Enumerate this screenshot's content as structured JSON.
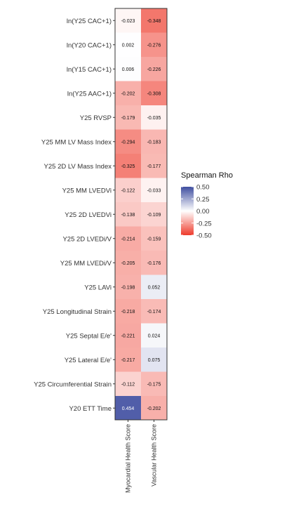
{
  "chart_data": {
    "type": "heatmap",
    "x_categories": [
      "Myocardial Health Score",
      "Vascular Health Score"
    ],
    "y_categories": [
      "ln(Y25 CAC+1)",
      "ln(Y20 CAC+1)",
      "ln(Y15 CAC+1)",
      "ln(Y25 AAC+1)",
      "Y25 RVSP",
      "Y25 MM LV Mass Index",
      "Y25 2D LV Mass Index",
      "Y25 MM LVEDVi",
      "Y25 2D LVEDVi",
      "Y25 2D LVEDi/V",
      "Y25 MM LVEDi/V",
      "Y25 LAVi",
      "Y25 Longitudinal Strain",
      "Y25 Septal E/e'",
      "Y25 Lateral E/e'",
      "Y25 Circumferential Strain",
      "Y20 ETT Time"
    ],
    "values": [
      [
        -0.023,
        -0.348
      ],
      [
        0.002,
        -0.276
      ],
      [
        0.006,
        -0.226
      ],
      [
        -0.202,
        -0.308
      ],
      [
        -0.179,
        -0.035
      ],
      [
        -0.294,
        -0.183
      ],
      [
        -0.325,
        -0.177
      ],
      [
        -0.122,
        -0.033
      ],
      [
        -0.138,
        -0.109
      ],
      [
        -0.214,
        -0.159
      ],
      [
        -0.205,
        -0.176
      ],
      [
        -0.198,
        0.052
      ],
      [
        -0.218,
        -0.174
      ],
      [
        -0.221,
        0.024
      ],
      [
        -0.217,
        0.075
      ],
      [
        -0.112,
        -0.175
      ],
      [
        0.454,
        -0.202
      ]
    ],
    "cell_labels": [
      [
        "-0.023",
        "-0.348"
      ],
      [
        "0.002",
        "-0.276"
      ],
      [
        "0.006",
        "-0.226"
      ],
      [
        "-0.202",
        "-0.308"
      ],
      [
        "-0.179",
        "-0.035"
      ],
      [
        "-0.294",
        "-0.183"
      ],
      [
        "-0.325",
        "-0.177"
      ],
      [
        "-0.122",
        "-0.033"
      ],
      [
        "-0.138",
        "-0.109"
      ],
      [
        "-0.214",
        "-0.159"
      ],
      [
        "-0.205",
        "-0.176"
      ],
      [
        "-0.198",
        "0.052"
      ],
      [
        "-0.218",
        "-0.174"
      ],
      [
        "-0.221",
        "0.024"
      ],
      [
        "-0.217",
        "0.075"
      ],
      [
        "-0.112",
        "-0.175"
      ],
      [
        "0.454",
        "-0.202"
      ]
    ],
    "legend": {
      "title": "Spearman Rho",
      "ticks": [
        0.5,
        0.25,
        0.0,
        -0.25,
        -0.5
      ],
      "tick_labels": [
        "0.50",
        "0.25",
        "0.00",
        "-0.25",
        "-0.50"
      ],
      "range": [
        -0.5,
        0.5
      ],
      "placement": "right"
    },
    "colors": {
      "high": "#3f4ea0",
      "mid": "#ffffff",
      "low": "#ee3b2c"
    }
  }
}
